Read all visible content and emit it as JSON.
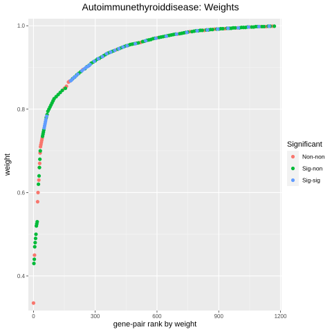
{
  "chart_data": {
    "type": "scatter",
    "title": "Autoimmunethyroiddisease: Weights",
    "xlabel": "gene-pair rank by weight",
    "ylabel": "weight",
    "xlim": [
      -25,
      1205
    ],
    "ylim": [
      0.317,
      1.017
    ],
    "x_ticks": [
      0,
      300,
      600,
      900,
      1200
    ],
    "x_tick_labels": [
      "0",
      "300",
      "600",
      "900",
      "1200"
    ],
    "y_ticks": [
      0.4,
      0.6,
      0.8,
      1.0
    ],
    "y_tick_labels": [
      "0.4",
      "0.6",
      "0.8",
      "1.0"
    ],
    "grid": true,
    "legend": {
      "title": "Significant",
      "placement": "right",
      "entries": [
        {
          "name": "Non-non",
          "color": "#F8766D"
        },
        {
          "name": "Sig-non",
          "color": "#00BA38"
        },
        {
          "name": "Sig-sig",
          "color": "#619CFF"
        }
      ]
    },
    "series": [
      {
        "name": "Non-non",
        "color": "#F8766D",
        "points": [
          [
            0,
            0.335
          ],
          [
            5,
            0.45
          ],
          [
            20,
            0.578
          ],
          [
            22,
            0.6
          ],
          [
            26,
            0.63
          ],
          [
            28,
            0.66
          ],
          [
            30,
            0.67
          ],
          [
            32,
            0.695
          ],
          [
            34,
            0.71
          ],
          [
            36,
            0.715
          ],
          [
            38,
            0.72
          ],
          [
            40,
            0.725
          ],
          [
            42,
            0.73
          ],
          [
            150,
            0.85
          ],
          [
            160,
            0.855
          ],
          [
            170,
            0.865
          ],
          [
            175,
            0.867
          ],
          [
            240,
            0.895
          ],
          [
            400,
            0.942
          ],
          [
            520,
            0.96
          ],
          [
            600,
            0.971
          ],
          [
            700,
            0.98
          ],
          [
            760,
            0.986
          ],
          [
            830,
            0.989
          ],
          [
            880,
            0.992
          ],
          [
            930,
            0.993
          ],
          [
            990,
            0.995
          ],
          [
            1050,
            0.997
          ],
          [
            1100,
            0.998
          ],
          [
            1130,
            0.998
          ],
          [
            1160,
            0.999
          ]
        ]
      },
      {
        "name": "Sig-non",
        "color": "#00BA38",
        "points": [
          [
            2,
            0.43
          ],
          [
            4,
            0.44
          ],
          [
            6,
            0.47
          ],
          [
            8,
            0.48
          ],
          [
            10,
            0.49
          ],
          [
            12,
            0.5
          ],
          [
            14,
            0.52
          ],
          [
            16,
            0.525
          ],
          [
            18,
            0.53
          ],
          [
            24,
            0.62
          ],
          [
            27,
            0.64
          ],
          [
            29,
            0.66
          ],
          [
            31,
            0.68
          ],
          [
            33,
            0.7
          ],
          [
            44,
            0.735
          ],
          [
            46,
            0.74
          ],
          [
            48,
            0.745
          ],
          [
            50,
            0.75
          ],
          [
            62,
            0.78
          ],
          [
            66,
            0.787
          ],
          [
            70,
            0.795
          ],
          [
            75,
            0.8
          ],
          [
            80,
            0.805
          ],
          [
            85,
            0.81
          ],
          [
            90,
            0.815
          ],
          [
            95,
            0.82
          ],
          [
            100,
            0.825
          ],
          [
            110,
            0.83
          ],
          [
            120,
            0.835
          ],
          [
            130,
            0.84
          ],
          [
            140,
            0.845
          ],
          [
            155,
            0.85
          ],
          [
            190,
            0.873
          ],
          [
            200,
            0.877
          ],
          [
            210,
            0.882
          ],
          [
            220,
            0.886
          ],
          [
            230,
            0.89
          ],
          [
            250,
            0.897
          ],
          [
            260,
            0.902
          ],
          [
            270,
            0.905
          ],
          [
            280,
            0.91
          ],
          [
            290,
            0.913
          ],
          [
            300,
            0.916
          ],
          [
            310,
            0.92
          ],
          [
            320,
            0.922
          ],
          [
            330,
            0.925
          ],
          [
            340,
            0.928
          ],
          [
            350,
            0.931
          ],
          [
            360,
            0.934
          ],
          [
            370,
            0.936
          ],
          [
            380,
            0.938
          ],
          [
            390,
            0.94
          ],
          [
            410,
            0.944
          ],
          [
            420,
            0.946
          ],
          [
            430,
            0.948
          ],
          [
            440,
            0.95
          ],
          [
            450,
            0.952
          ],
          [
            460,
            0.953
          ],
          [
            470,
            0.955
          ],
          [
            480,
            0.956
          ],
          [
            490,
            0.957
          ],
          [
            500,
            0.958
          ],
          [
            510,
            0.959
          ],
          [
            530,
            0.962
          ],
          [
            540,
            0.963
          ],
          [
            550,
            0.965
          ],
          [
            560,
            0.966
          ],
          [
            570,
            0.967
          ],
          [
            580,
            0.969
          ],
          [
            590,
            0.97
          ],
          [
            610,
            0.972
          ],
          [
            620,
            0.973
          ],
          [
            630,
            0.974
          ],
          [
            640,
            0.975
          ],
          [
            650,
            0.976
          ],
          [
            660,
            0.977
          ],
          [
            670,
            0.978
          ],
          [
            680,
            0.979
          ],
          [
            690,
            0.98
          ],
          [
            710,
            0.981
          ],
          [
            720,
            0.982
          ],
          [
            730,
            0.983
          ],
          [
            740,
            0.984
          ],
          [
            750,
            0.985
          ],
          [
            770,
            0.986
          ],
          [
            780,
            0.987
          ],
          [
            790,
            0.988
          ],
          [
            800,
            0.988
          ],
          [
            810,
            0.989
          ],
          [
            820,
            0.989
          ],
          [
            840,
            0.99
          ],
          [
            850,
            0.99
          ],
          [
            860,
            0.991
          ],
          [
            870,
            0.991
          ],
          [
            890,
            0.992
          ],
          [
            900,
            0.992
          ],
          [
            910,
            0.993
          ],
          [
            920,
            0.993
          ],
          [
            940,
            0.994
          ],
          [
            950,
            0.994
          ],
          [
            960,
            0.994
          ],
          [
            970,
            0.995
          ],
          [
            980,
            0.995
          ],
          [
            1000,
            0.995
          ],
          [
            1010,
            0.996
          ],
          [
            1020,
            0.996
          ],
          [
            1030,
            0.996
          ],
          [
            1040,
            0.997
          ],
          [
            1060,
            0.997
          ],
          [
            1070,
            0.997
          ],
          [
            1080,
            0.998
          ],
          [
            1090,
            0.998
          ],
          [
            1110,
            0.998
          ],
          [
            1120,
            0.998
          ],
          [
            1140,
            0.999
          ],
          [
            1150,
            0.999
          ],
          [
            1170,
            0.999
          ]
        ]
      },
      {
        "name": "Sig-sig",
        "color": "#619CFF",
        "points": [
          [
            52,
            0.755
          ],
          [
            54,
            0.76
          ],
          [
            56,
            0.765
          ],
          [
            58,
            0.77
          ],
          [
            60,
            0.775
          ],
          [
            64,
            0.783
          ],
          [
            180,
            0.868
          ],
          [
            185,
            0.87
          ],
          [
            195,
            0.875
          ],
          [
            205,
            0.879
          ],
          [
            215,
            0.884
          ],
          [
            235,
            0.892
          ],
          [
            245,
            0.896
          ],
          [
            255,
            0.9
          ],
          [
            265,
            0.903
          ],
          [
            275,
            0.907
          ],
          [
            295,
            0.915
          ],
          [
            315,
            0.921
          ],
          [
            335,
            0.926
          ],
          [
            355,
            0.933
          ],
          [
            375,
            0.937
          ],
          [
            395,
            0.941
          ],
          [
            415,
            0.945
          ],
          [
            435,
            0.949
          ],
          [
            455,
            0.952
          ],
          [
            495,
            0.957
          ],
          [
            545,
            0.964
          ],
          [
            595,
            0.97
          ],
          [
            645,
            0.975
          ],
          [
            695,
            0.98
          ],
          [
            745,
            0.984
          ],
          [
            795,
            0.988
          ],
          [
            845,
            0.99
          ],
          [
            895,
            0.992
          ],
          [
            945,
            0.994
          ],
          [
            995,
            0.995
          ],
          [
            1045,
            0.997
          ],
          [
            1095,
            0.998
          ],
          [
            1145,
            0.999
          ]
        ]
      }
    ]
  }
}
